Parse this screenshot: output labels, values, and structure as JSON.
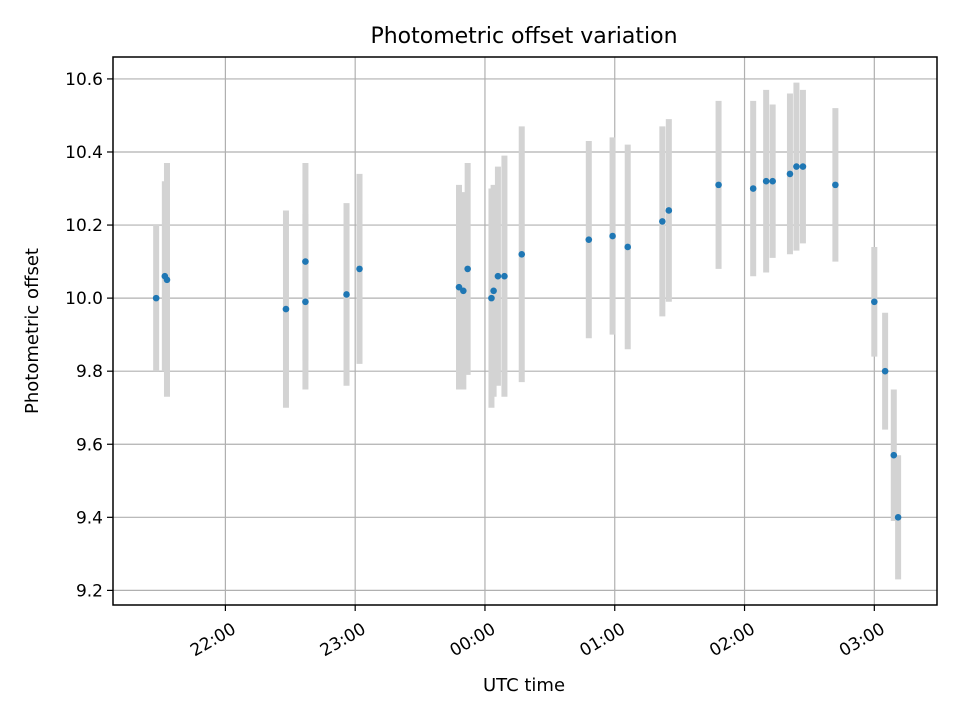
{
  "chart_data": {
    "type": "scatter",
    "title": "Photometric offset variation",
    "xlabel": "UTC time",
    "ylabel": "Photometric offset",
    "grid": true,
    "x_time_start": "21:08",
    "x_time_end": "03:30",
    "xlim_hours": [
      -2.866,
      3.483
    ],
    "ylim": [
      9.16,
      10.66
    ],
    "yticks": [
      "9.2",
      "9.4",
      "9.6",
      "9.8",
      "10.0",
      "10.2",
      "10.4",
      "10.6"
    ],
    "xticks": [
      "22:00",
      "23:00",
      "00:00",
      "01:00",
      "02:00",
      "03:00"
    ],
    "colors": {
      "marker": "#1f77b4",
      "errorbar": "#d3d3d3"
    },
    "series": [
      {
        "time": [
          "21:28",
          "21:32",
          "21:33",
          "22:28",
          "22:37",
          "22:37",
          "22:56",
          "23:02",
          "23:48",
          "23:50",
          "23:52",
          "00:03",
          "00:04",
          "00:06",
          "00:09",
          "00:17",
          "00:48",
          "00:59",
          "01:06",
          "01:22",
          "01:25",
          "01:48",
          "02:04",
          "02:10",
          "02:13",
          "02:21",
          "02:24",
          "02:27",
          "02:42",
          "03:00",
          "03:05",
          "03:09",
          "03:11"
        ],
        "y": [
          10.0,
          10.06,
          10.05,
          9.97,
          9.99,
          10.1,
          10.01,
          10.08,
          10.03,
          10.02,
          10.08,
          10.0,
          10.02,
          10.06,
          10.06,
          10.12,
          10.16,
          10.17,
          10.14,
          10.21,
          10.24,
          10.31,
          10.3,
          10.32,
          10.32,
          10.34,
          10.36,
          10.36,
          10.31,
          9.99,
          9.8,
          9.57,
          9.4
        ],
        "yerr": [
          0.2,
          0.26,
          0.32,
          0.27,
          0.24,
          0.27,
          0.25,
          0.26,
          0.28,
          0.27,
          0.29,
          0.3,
          0.29,
          0.3,
          0.33,
          0.35,
          0.27,
          0.27,
          0.28,
          0.26,
          0.25,
          0.23,
          0.24,
          0.25,
          0.21,
          0.22,
          0.23,
          0.21,
          0.21,
          0.15,
          0.16,
          0.18,
          0.17
        ]
      }
    ]
  }
}
